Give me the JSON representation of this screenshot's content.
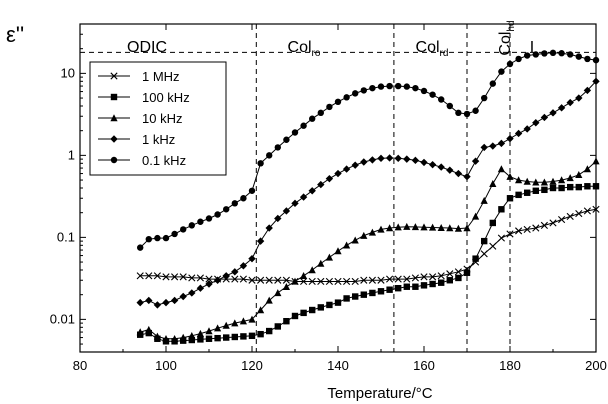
{
  "chart_data": {
    "type": "line",
    "xlabel": "Temperature/°C",
    "ylabel": "ε''",
    "xlim": [
      80,
      200
    ],
    "ylim": [
      0.004,
      40
    ],
    "yscale": "log",
    "x_ticks": [
      80,
      100,
      120,
      140,
      160,
      180,
      200
    ],
    "y_ticks": [
      0.01,
      0.1,
      1,
      10
    ],
    "y_tick_labels": [
      "0.01",
      "0.1",
      "1",
      "10"
    ],
    "grid": false,
    "legend_position": "top-left",
    "phase_boundaries": [
      121,
      153,
      170,
      180
    ],
    "horizontal_ref": 18,
    "phases": [
      {
        "label": "ODIC",
        "sub": ""
      },
      {
        "label": "Col",
        "sub": "ro"
      },
      {
        "label": "Col",
        "sub": "rd"
      },
      {
        "label": "Col",
        "sub": "hd"
      },
      {
        "label": "I",
        "sub": ""
      }
    ],
    "series": [
      {
        "name": "1 MHz",
        "marker": "x",
        "x": [
          94,
          96,
          98,
          100,
          102,
          104,
          106,
          108,
          110,
          112,
          114,
          116,
          118,
          120,
          122,
          124,
          126,
          128,
          130,
          132,
          134,
          136,
          138,
          140,
          142,
          144,
          146,
          148,
          150,
          152,
          154,
          156,
          158,
          160,
          162,
          164,
          166,
          168,
          170,
          172,
          174,
          176,
          178,
          180,
          182,
          184,
          186,
          188,
          190,
          192,
          194,
          196,
          198,
          200
        ],
        "y": [
          0.034,
          0.034,
          0.034,
          0.033,
          0.033,
          0.033,
          0.032,
          0.032,
          0.031,
          0.031,
          0.031,
          0.031,
          0.031,
          0.03,
          0.03,
          0.03,
          0.03,
          0.03,
          0.029,
          0.029,
          0.029,
          0.029,
          0.029,
          0.029,
          0.029,
          0.029,
          0.03,
          0.03,
          0.03,
          0.031,
          0.031,
          0.031,
          0.032,
          0.033,
          0.033,
          0.034,
          0.036,
          0.038,
          0.041,
          0.05,
          0.063,
          0.078,
          0.098,
          0.11,
          0.12,
          0.125,
          0.13,
          0.14,
          0.15,
          0.165,
          0.18,
          0.195,
          0.21,
          0.22
        ]
      },
      {
        "name": "100 kHz",
        "marker": "square",
        "x": [
          94,
          96,
          98,
          100,
          102,
          104,
          106,
          108,
          110,
          112,
          114,
          116,
          118,
          120,
          122,
          124,
          126,
          128,
          130,
          132,
          134,
          136,
          138,
          140,
          142,
          144,
          146,
          148,
          150,
          152,
          154,
          156,
          158,
          160,
          162,
          164,
          166,
          168,
          170,
          172,
          174,
          176,
          178,
          180,
          182,
          184,
          186,
          188,
          190,
          192,
          194,
          196,
          198,
          200
        ],
        "y": [
          0.0065,
          0.0068,
          0.0058,
          0.0054,
          0.0054,
          0.0055,
          0.0056,
          0.0057,
          0.0058,
          0.0059,
          0.006,
          0.0061,
          0.0062,
          0.0063,
          0.0066,
          0.0072,
          0.0082,
          0.0095,
          0.011,
          0.012,
          0.013,
          0.014,
          0.015,
          0.016,
          0.018,
          0.019,
          0.02,
          0.021,
          0.022,
          0.023,
          0.024,
          0.025,
          0.025,
          0.026,
          0.027,
          0.028,
          0.03,
          0.032,
          0.037,
          0.055,
          0.09,
          0.15,
          0.22,
          0.3,
          0.33,
          0.35,
          0.37,
          0.38,
          0.4,
          0.4,
          0.41,
          0.41,
          0.42,
          0.42
        ]
      },
      {
        "name": "10 kHz",
        "marker": "triangle",
        "x": [
          94,
          96,
          98,
          100,
          102,
          104,
          106,
          108,
          110,
          112,
          114,
          116,
          118,
          120,
          122,
          124,
          126,
          128,
          130,
          132,
          134,
          136,
          138,
          140,
          142,
          144,
          146,
          148,
          150,
          152,
          154,
          156,
          158,
          160,
          162,
          164,
          166,
          168,
          170,
          172,
          174,
          176,
          178,
          180,
          182,
          184,
          186,
          188,
          190,
          192,
          194,
          196,
          198,
          200
        ],
        "y": [
          0.007,
          0.0075,
          0.0062,
          0.0058,
          0.0058,
          0.006,
          0.0063,
          0.0067,
          0.0072,
          0.0078,
          0.0084,
          0.009,
          0.0095,
          0.01,
          0.013,
          0.017,
          0.021,
          0.025,
          0.029,
          0.034,
          0.04,
          0.048,
          0.057,
          0.068,
          0.08,
          0.092,
          0.105,
          0.115,
          0.125,
          0.13,
          0.133,
          0.135,
          0.134,
          0.133,
          0.132,
          0.131,
          0.13,
          0.128,
          0.13,
          0.18,
          0.28,
          0.45,
          0.68,
          0.55,
          0.5,
          0.48,
          0.47,
          0.47,
          0.48,
          0.5,
          0.53,
          0.58,
          0.68,
          0.85
        ]
      },
      {
        "name": "1 kHz",
        "marker": "diamond",
        "x": [
          94,
          96,
          98,
          100,
          102,
          104,
          106,
          108,
          110,
          112,
          114,
          116,
          118,
          120,
          122,
          124,
          126,
          128,
          130,
          132,
          134,
          136,
          138,
          140,
          142,
          144,
          146,
          148,
          150,
          152,
          154,
          156,
          158,
          160,
          162,
          164,
          166,
          168,
          170,
          172,
          174,
          176,
          178,
          180,
          182,
          184,
          186,
          188,
          190,
          192,
          194,
          196,
          198,
          200
        ],
        "y": [
          0.016,
          0.017,
          0.015,
          0.016,
          0.017,
          0.019,
          0.021,
          0.024,
          0.027,
          0.03,
          0.034,
          0.038,
          0.045,
          0.055,
          0.09,
          0.13,
          0.17,
          0.21,
          0.26,
          0.31,
          0.37,
          0.44,
          0.52,
          0.6,
          0.68,
          0.76,
          0.83,
          0.88,
          0.92,
          0.93,
          0.92,
          0.9,
          0.87,
          0.82,
          0.77,
          0.72,
          0.66,
          0.6,
          0.55,
          0.85,
          1.25,
          1.3,
          1.4,
          1.6,
          1.85,
          2.1,
          2.5,
          2.9,
          3.3,
          3.8,
          4.4,
          5.0,
          6.2,
          8.0
        ]
      },
      {
        "name": "0.1 kHz",
        "marker": "circle",
        "x": [
          94,
          96,
          98,
          100,
          102,
          104,
          106,
          108,
          110,
          112,
          114,
          116,
          118,
          120,
          122,
          124,
          126,
          128,
          130,
          132,
          134,
          136,
          138,
          140,
          142,
          144,
          146,
          148,
          150,
          152,
          154,
          156,
          158,
          160,
          162,
          164,
          166,
          168,
          170,
          172,
          174,
          176,
          178,
          180,
          182,
          184,
          186,
          188,
          190,
          192,
          194,
          196,
          198,
          200
        ],
        "y": [
          0.075,
          0.095,
          0.098,
          0.098,
          0.11,
          0.125,
          0.14,
          0.155,
          0.17,
          0.19,
          0.22,
          0.26,
          0.3,
          0.37,
          0.8,
          1.0,
          1.25,
          1.55,
          1.9,
          2.3,
          2.8,
          3.3,
          3.9,
          4.5,
          5.1,
          5.7,
          6.2,
          6.6,
          6.9,
          7.0,
          7.0,
          6.9,
          6.6,
          6.1,
          5.5,
          4.8,
          4.0,
          3.3,
          3.2,
          3.5,
          5.0,
          7.5,
          10.5,
          13.0,
          15.0,
          16.5,
          17.0,
          17.5,
          17.8,
          17.6,
          17.0,
          16.0,
          15.0,
          14.5
        ]
      }
    ]
  }
}
